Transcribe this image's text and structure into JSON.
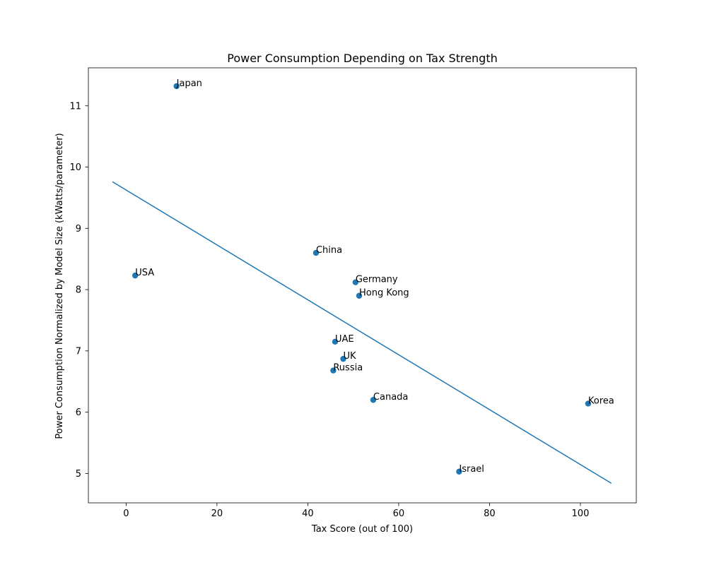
{
  "chart_data": {
    "type": "scatter",
    "title": "Power Consumption Depending on Tax Strength",
    "xlabel": "Tax Score (out of 100)",
    "ylabel": "Power Consumption Normalized by Model Size (kWatts/parameter)",
    "xlim": [
      -8.3,
      112.3
    ],
    "ylim": [
      4.52,
      11.62
    ],
    "xticks": [
      0,
      20,
      40,
      60,
      80,
      100
    ],
    "yticks": [
      5,
      6,
      7,
      8,
      9,
      10,
      11
    ],
    "grid": false,
    "point_color": "#1f77b4",
    "line_color": "#1f77b4",
    "points": [
      {
        "label": "Japan",
        "x": 11.1,
        "y": 11.32
      },
      {
        "label": "China",
        "x": 41.8,
        "y": 8.6
      },
      {
        "label": "USA",
        "x": 2.0,
        "y": 8.23
      },
      {
        "label": "Germany",
        "x": 50.5,
        "y": 8.12
      },
      {
        "label": "Hong Kong",
        "x": 51.3,
        "y": 7.9
      },
      {
        "label": "UAE",
        "x": 46.0,
        "y": 7.15
      },
      {
        "label": "UK",
        "x": 47.8,
        "y": 6.87
      },
      {
        "label": "Russia",
        "x": 45.6,
        "y": 6.68
      },
      {
        "label": "Canada",
        "x": 54.4,
        "y": 6.2
      },
      {
        "label": "Korea",
        "x": 101.7,
        "y": 6.14
      },
      {
        "label": "Israel",
        "x": 73.3,
        "y": 5.03
      }
    ],
    "trend_line": {
      "x": [
        -3.0,
        106.8
      ],
      "y": [
        9.76,
        4.84
      ]
    }
  }
}
